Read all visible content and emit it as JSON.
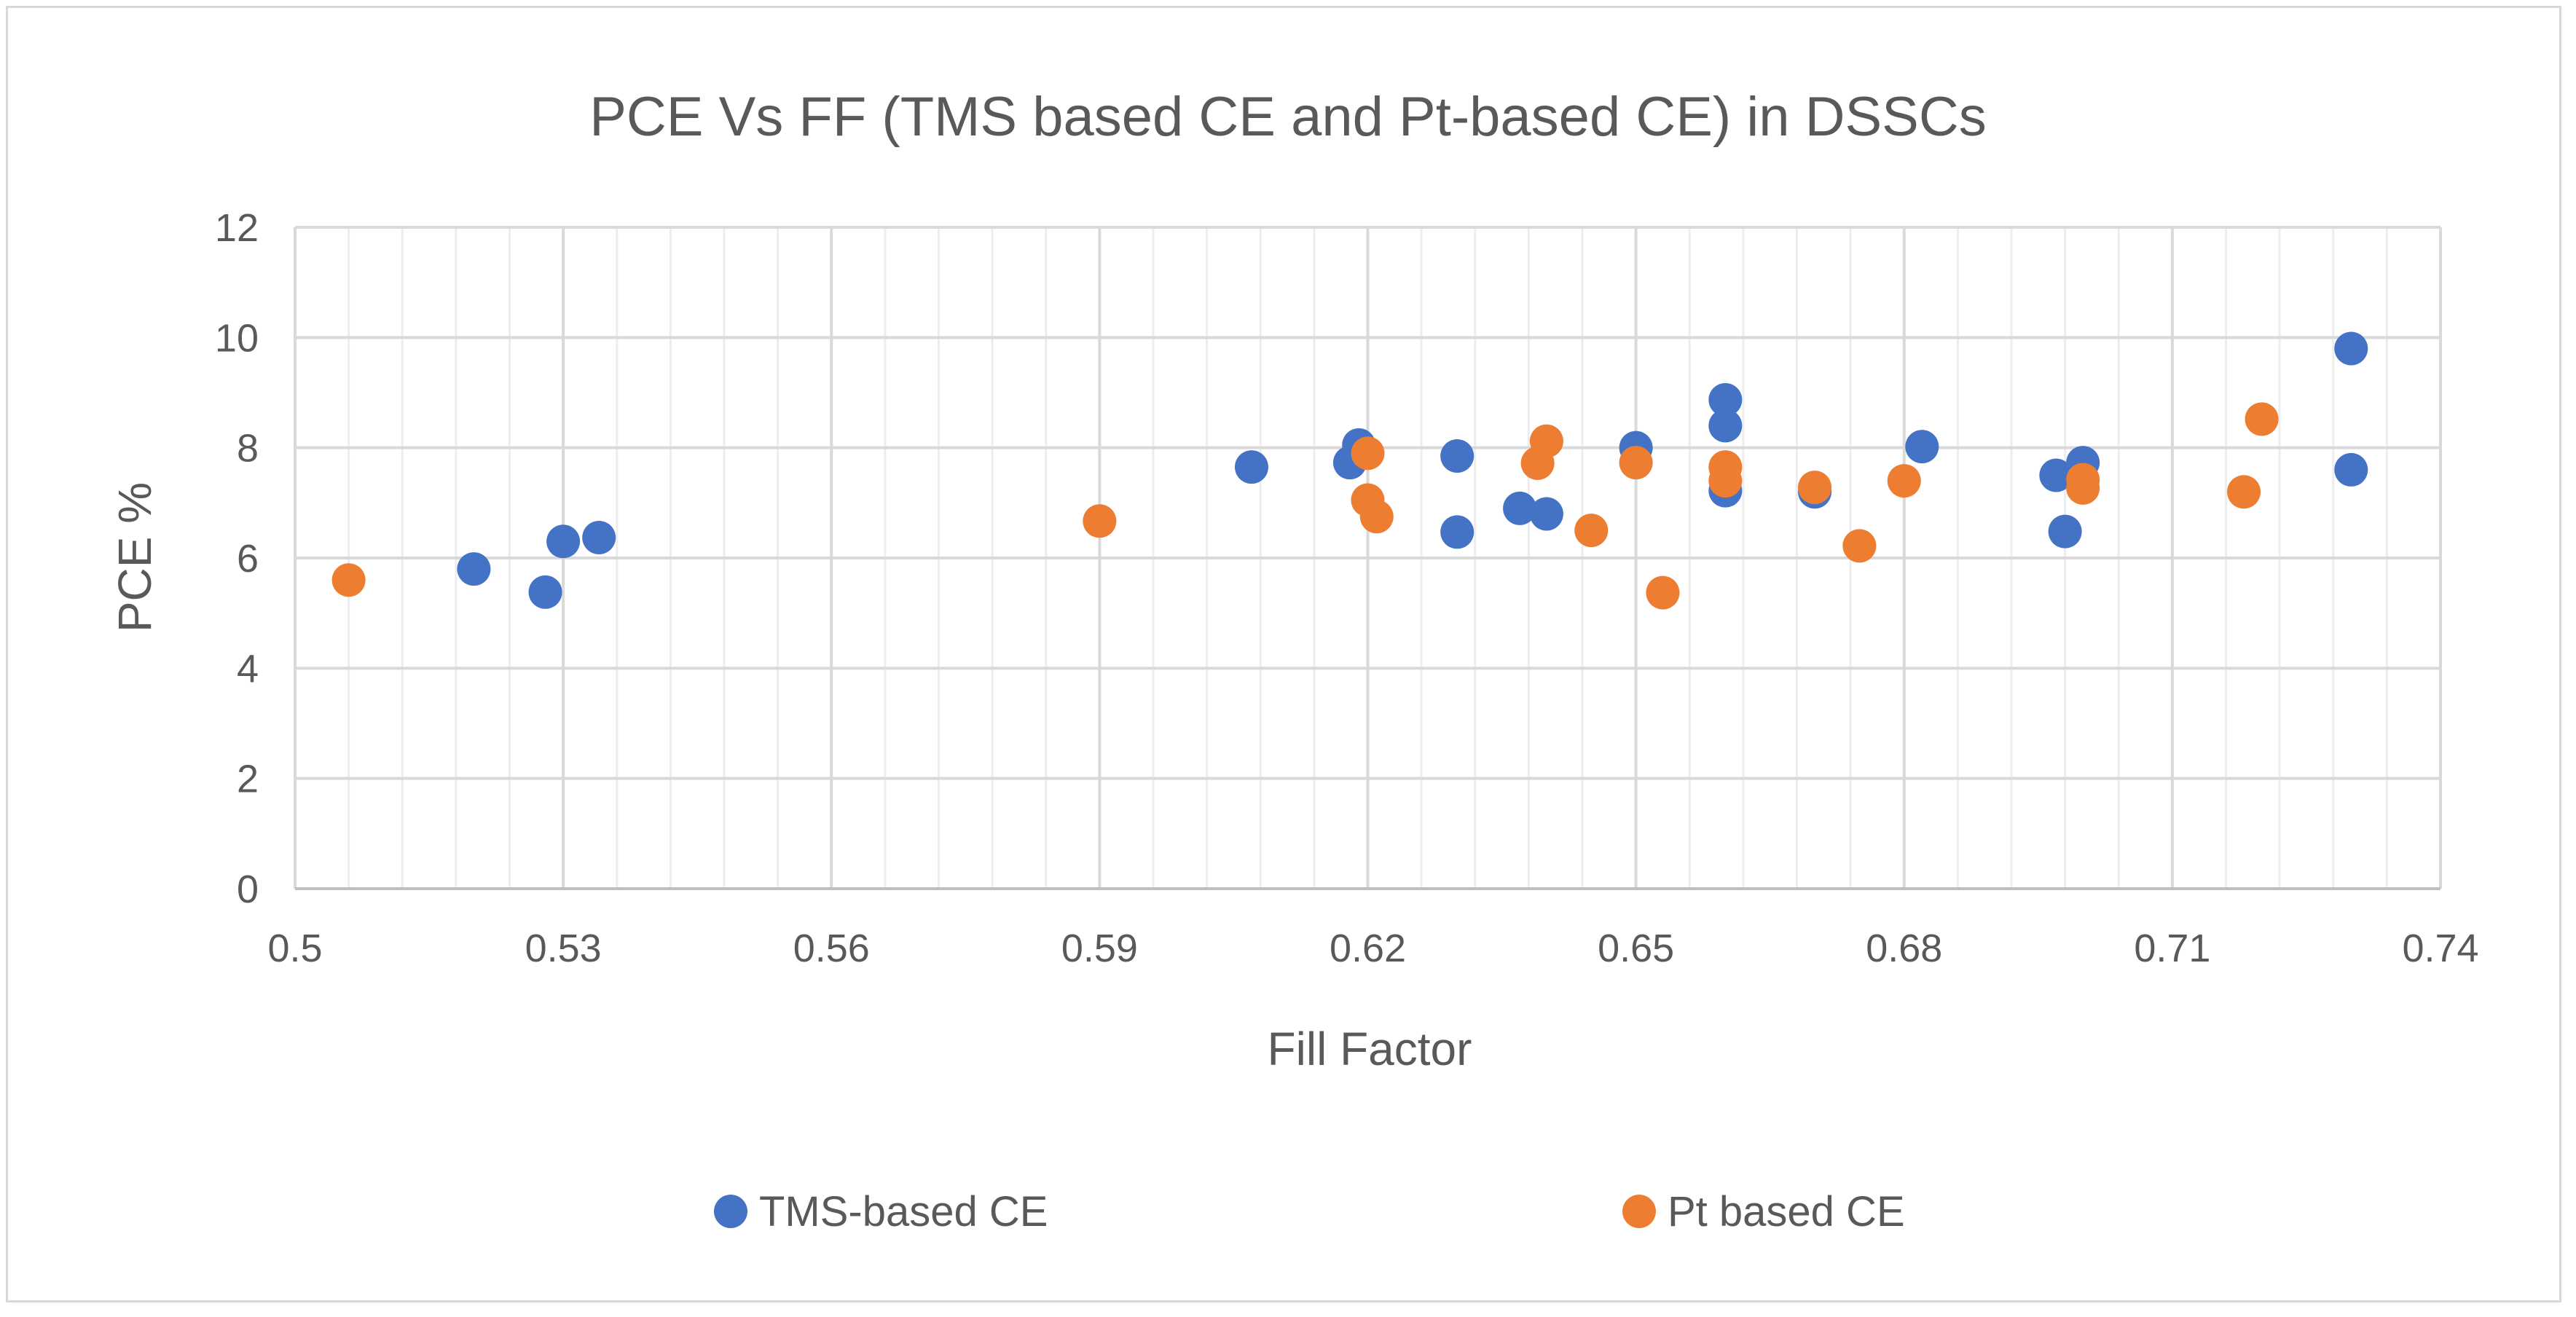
{
  "chart_data": {
    "type": "scatter",
    "title": "PCE Vs FF (TMS based CE and Pt-based CE) in DSSCs",
    "xlabel": "Fill Factor",
    "ylabel": "PCE %",
    "xlim": [
      0.5,
      0.74
    ],
    "ylim": [
      0,
      12
    ],
    "x_ticks": [
      "0.5",
      "0.53",
      "0.56",
      "0.59",
      "0.62",
      "0.65",
      "0.68",
      "0.71",
      "0.74"
    ],
    "y_ticks": [
      "0",
      "2",
      "4",
      "6",
      "8",
      "10",
      "12"
    ],
    "grid": true,
    "legend_position": "bottom",
    "series": [
      {
        "name": "TMS-based CE",
        "color": "#4472c4",
        "points": [
          [
            0.52,
            5.8
          ],
          [
            0.528,
            5.38
          ],
          [
            0.53,
            6.3
          ],
          [
            0.534,
            6.37
          ],
          [
            0.607,
            7.65
          ],
          [
            0.618,
            7.73
          ],
          [
            0.619,
            8.05
          ],
          [
            0.63,
            7.85
          ],
          [
            0.63,
            6.47
          ],
          [
            0.637,
            6.9
          ],
          [
            0.64,
            6.8
          ],
          [
            0.65,
            8.0
          ],
          [
            0.66,
            8.87
          ],
          [
            0.66,
            8.4
          ],
          [
            0.66,
            7.22
          ],
          [
            0.67,
            7.2
          ],
          [
            0.682,
            8.02
          ],
          [
            0.697,
            7.5
          ],
          [
            0.698,
            6.48
          ],
          [
            0.7,
            7.73
          ],
          [
            0.73,
            9.8
          ],
          [
            0.73,
            7.6
          ]
        ]
      },
      {
        "name": "Pt based CE",
        "color": "#ed7d31",
        "points": [
          [
            0.506,
            5.6
          ],
          [
            0.59,
            6.67
          ],
          [
            0.62,
            7.9
          ],
          [
            0.62,
            7.05
          ],
          [
            0.621,
            6.75
          ],
          [
            0.639,
            7.72
          ],
          [
            0.64,
            8.12
          ],
          [
            0.645,
            6.5
          ],
          [
            0.65,
            7.73
          ],
          [
            0.653,
            5.37
          ],
          [
            0.66,
            7.65
          ],
          [
            0.66,
            7.4
          ],
          [
            0.67,
            7.28
          ],
          [
            0.675,
            6.22
          ],
          [
            0.68,
            7.4
          ],
          [
            0.7,
            7.42
          ],
          [
            0.7,
            7.27
          ],
          [
            0.718,
            7.2
          ],
          [
            0.72,
            8.52
          ]
        ]
      }
    ]
  }
}
